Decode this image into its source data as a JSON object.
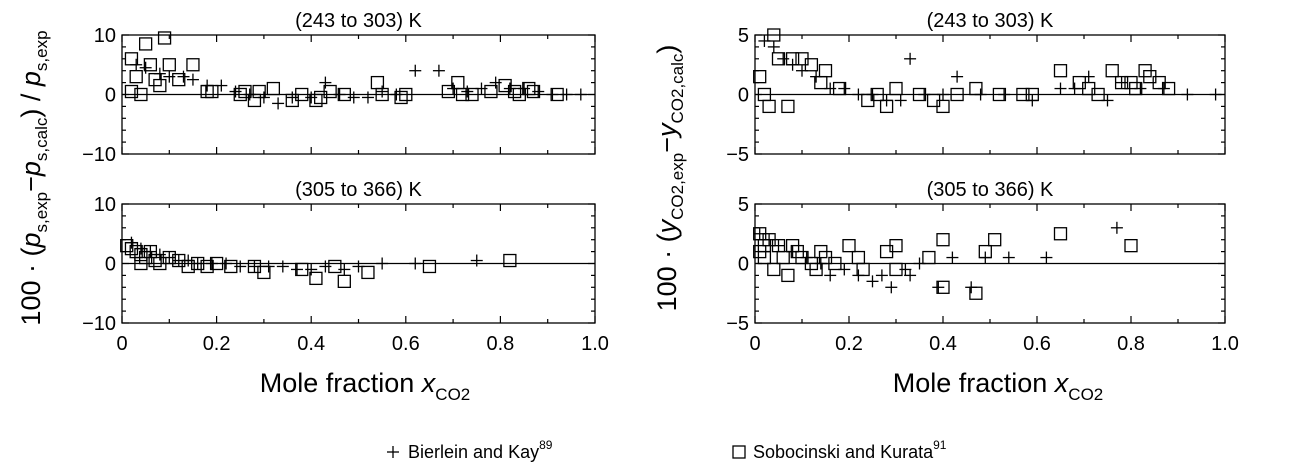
{
  "figure": {
    "legend": {
      "plus_label": "Bierlein and Kay",
      "plus_ref": "89",
      "square_label": "Sobocinski and Kurata",
      "square_ref": "91"
    },
    "left_ylabel": {
      "prefix": "100 · (",
      "p1": "p",
      "p1_sub": "s,exp",
      "minus": "−",
      "p2": "p",
      "p2_sub": "s,calc",
      "mid": ") / ",
      "p3": "p",
      "p3_sub": "s,exp"
    },
    "right_ylabel": {
      "prefix": "100 · (",
      "y1": "y",
      "y1_sub": "CO2,exp",
      "minus": "−",
      "y2": "y",
      "y2_sub": "CO2,calc",
      "suffix": ")"
    },
    "xlabel": {
      "text": "Mole fraction ",
      "var": "x",
      "sub": "CO2"
    }
  },
  "chart_data": [
    {
      "type": "scatter",
      "title": "(243 to 303) K",
      "xlim": [
        0,
        1.0
      ],
      "ylim": [
        -10,
        10
      ],
      "xticks": [
        0,
        0.2,
        0.4,
        0.6,
        0.8,
        1.0
      ],
      "xtick_labels": [
        "0",
        "0.2",
        "0.4",
        "0.6",
        "0.8",
        "1.0"
      ],
      "yticks": [
        -10,
        0,
        10
      ],
      "ytick_labels": [
        "−10",
        "0",
        "10"
      ],
      "show_x_labels": false,
      "series": [
        {
          "name": "Bierlein and Kay",
          "marker": "plus",
          "points": [
            [
              0.03,
              5.0
            ],
            [
              0.05,
              4.5
            ],
            [
              0.08,
              3.5
            ],
            [
              0.1,
              3.0
            ],
            [
              0.13,
              3.0
            ],
            [
              0.15,
              2.5
            ],
            [
              0.18,
              1.5
            ],
            [
              0.21,
              1.5
            ],
            [
              0.24,
              0.5
            ],
            [
              0.27,
              0.0
            ],
            [
              0.3,
              -0.5
            ],
            [
              0.33,
              -1.5
            ],
            [
              0.36,
              -0.5
            ],
            [
              0.4,
              -0.5
            ],
            [
              0.43,
              2.0
            ],
            [
              0.46,
              0.0
            ],
            [
              0.49,
              -0.5
            ],
            [
              0.52,
              -0.5
            ],
            [
              0.55,
              0.5
            ],
            [
              0.58,
              0.0
            ],
            [
              0.62,
              4.0
            ],
            [
              0.67,
              4.0
            ],
            [
              0.7,
              1.0
            ],
            [
              0.73,
              0.5
            ],
            [
              0.76,
              1.0
            ],
            [
              0.79,
              2.0
            ],
            [
              0.82,
              1.0
            ],
            [
              0.85,
              1.0
            ],
            [
              0.88,
              0.5
            ],
            [
              0.91,
              0.0
            ],
            [
              0.94,
              0.0
            ],
            [
              0.97,
              0.0
            ]
          ]
        },
        {
          "name": "Sobocinski and Kurata",
          "marker": "square",
          "points": [
            [
              0.02,
              6.0
            ],
            [
              0.02,
              0.5
            ],
            [
              0.03,
              3.0
            ],
            [
              0.04,
              0.0
            ],
            [
              0.05,
              8.5
            ],
            [
              0.06,
              5.0
            ],
            [
              0.07,
              2.5
            ],
            [
              0.08,
              1.5
            ],
            [
              0.09,
              9.5
            ],
            [
              0.1,
              5.0
            ],
            [
              0.12,
              2.5
            ],
            [
              0.15,
              5.0
            ],
            [
              0.18,
              0.5
            ],
            [
              0.19,
              0.5
            ],
            [
              0.25,
              0.0
            ],
            [
              0.26,
              0.5
            ],
            [
              0.28,
              -1.0
            ],
            [
              0.29,
              0.5
            ],
            [
              0.32,
              1.0
            ],
            [
              0.36,
              -1.0
            ],
            [
              0.38,
              0.0
            ],
            [
              0.41,
              -1.0
            ],
            [
              0.42,
              -0.5
            ],
            [
              0.44,
              0.5
            ],
            [
              0.47,
              0.0
            ],
            [
              0.54,
              2.0
            ],
            [
              0.55,
              0.0
            ],
            [
              0.59,
              -0.5
            ],
            [
              0.6,
              0.0
            ],
            [
              0.69,
              0.5
            ],
            [
              0.71,
              2.0
            ],
            [
              0.72,
              0.0
            ],
            [
              0.74,
              0.0
            ],
            [
              0.78,
              0.5
            ],
            [
              0.81,
              1.5
            ],
            [
              0.83,
              0.5
            ],
            [
              0.84,
              0.0
            ],
            [
              0.86,
              1.0
            ],
            [
              0.87,
              0.5
            ],
            [
              0.92,
              0.0
            ]
          ]
        }
      ]
    },
    {
      "type": "scatter",
      "title": "(305 to 366) K",
      "xlim": [
        0,
        1.0
      ],
      "ylim": [
        -10,
        10
      ],
      "xticks": [
        0,
        0.2,
        0.4,
        0.6,
        0.8,
        1.0
      ],
      "xtick_labels": [
        "0",
        "0.2",
        "0.4",
        "0.6",
        "0.8",
        "1.0"
      ],
      "yticks": [
        -10,
        0,
        10
      ],
      "ytick_labels": [
        "−10",
        "0",
        "10"
      ],
      "show_x_labels": true,
      "series": [
        {
          "name": "Bierlein and Kay",
          "marker": "plus",
          "points": [
            [
              0.02,
              3.5
            ],
            [
              0.04,
              2.5
            ],
            [
              0.06,
              2.0
            ],
            [
              0.08,
              1.5
            ],
            [
              0.1,
              1.0
            ],
            [
              0.12,
              0.5
            ],
            [
              0.14,
              0.5
            ],
            [
              0.16,
              0.0
            ],
            [
              0.19,
              0.0
            ],
            [
              0.22,
              0.0
            ],
            [
              0.25,
              -0.5
            ],
            [
              0.28,
              -0.5
            ],
            [
              0.31,
              -0.5
            ],
            [
              0.34,
              -0.5
            ],
            [
              0.37,
              -1.0
            ],
            [
              0.4,
              -1.0
            ],
            [
              0.43,
              -0.5
            ],
            [
              0.47,
              -1.0
            ],
            [
              0.5,
              -0.5
            ],
            [
              0.55,
              0.0
            ],
            [
              0.62,
              0.0
            ],
            [
              0.75,
              0.5
            ]
          ]
        },
        {
          "name": "Sobocinski and Kurata",
          "marker": "square",
          "points": [
            [
              0.01,
              3.0
            ],
            [
              0.02,
              2.5
            ],
            [
              0.03,
              2.0
            ],
            [
              0.04,
              1.5
            ],
            [
              0.04,
              0.0
            ],
            [
              0.05,
              1.0
            ],
            [
              0.06,
              2.0
            ],
            [
              0.07,
              0.5
            ],
            [
              0.08,
              0.0
            ],
            [
              0.1,
              1.0
            ],
            [
              0.12,
              0.5
            ],
            [
              0.14,
              -0.5
            ],
            [
              0.16,
              0.0
            ],
            [
              0.18,
              -0.5
            ],
            [
              0.2,
              0.0
            ],
            [
              0.23,
              -0.5
            ],
            [
              0.28,
              -0.5
            ],
            [
              0.3,
              -1.5
            ],
            [
              0.38,
              -1.0
            ],
            [
              0.41,
              -2.5
            ],
            [
              0.45,
              -0.5
            ],
            [
              0.47,
              -3.0
            ],
            [
              0.52,
              -1.5
            ],
            [
              0.65,
              -0.5
            ],
            [
              0.82,
              0.5
            ]
          ]
        }
      ]
    },
    {
      "type": "scatter",
      "title": "(243 to 303) K",
      "xlim": [
        0,
        1.0
      ],
      "ylim": [
        -5,
        5
      ],
      "xticks": [
        0,
        0.2,
        0.4,
        0.6,
        0.8,
        1.0
      ],
      "xtick_labels": [
        "0",
        "0.2",
        "0.4",
        "0.6",
        "0.8",
        "1.0"
      ],
      "yticks": [
        -5,
        0,
        5
      ],
      "ytick_labels": [
        "−5",
        "0",
        "5"
      ],
      "show_x_labels": false,
      "series": [
        {
          "name": "Bierlein and Kay",
          "marker": "plus",
          "points": [
            [
              0.02,
              4.5
            ],
            [
              0.04,
              4.0
            ],
            [
              0.06,
              3.0
            ],
            [
              0.08,
              2.5
            ],
            [
              0.1,
              2.0
            ],
            [
              0.13,
              1.5
            ],
            [
              0.16,
              0.5
            ],
            [
              0.19,
              0.5
            ],
            [
              0.22,
              0.0
            ],
            [
              0.25,
              0.0
            ],
            [
              0.28,
              -0.5
            ],
            [
              0.31,
              -0.5
            ],
            [
              0.33,
              3.0
            ],
            [
              0.36,
              0.0
            ],
            [
              0.4,
              0.0
            ],
            [
              0.43,
              1.5
            ],
            [
              0.48,
              0.0
            ],
            [
              0.53,
              0.0
            ],
            [
              0.59,
              -0.5
            ],
            [
              0.65,
              0.5
            ],
            [
              0.68,
              0.5
            ],
            [
              0.71,
              1.5
            ],
            [
              0.75,
              -0.5
            ],
            [
              0.78,
              1.0
            ],
            [
              0.82,
              0.5
            ],
            [
              0.87,
              0.5
            ],
            [
              0.92,
              0.0
            ],
            [
              0.98,
              0.0
            ]
          ]
        },
        {
          "name": "Sobocinski and Kurata",
          "marker": "square",
          "points": [
            [
              0.01,
              1.5
            ],
            [
              0.02,
              0.0
            ],
            [
              0.03,
              -1.0
            ],
            [
              0.04,
              5.0
            ],
            [
              0.05,
              3.0
            ],
            [
              0.07,
              -1.0
            ],
            [
              0.08,
              3.0
            ],
            [
              0.1,
              3.0
            ],
            [
              0.12,
              2.5
            ],
            [
              0.14,
              1.0
            ],
            [
              0.15,
              2.0
            ],
            [
              0.18,
              0.5
            ],
            [
              0.24,
              -0.5
            ],
            [
              0.26,
              0.0
            ],
            [
              0.28,
              -1.0
            ],
            [
              0.3,
              0.5
            ],
            [
              0.35,
              0.0
            ],
            [
              0.38,
              -0.5
            ],
            [
              0.4,
              -1.0
            ],
            [
              0.43,
              0.0
            ],
            [
              0.47,
              0.5
            ],
            [
              0.52,
              0.0
            ],
            [
              0.57,
              0.0
            ],
            [
              0.59,
              0.0
            ],
            [
              0.65,
              2.0
            ],
            [
              0.69,
              1.0
            ],
            [
              0.71,
              0.5
            ],
            [
              0.73,
              0.0
            ],
            [
              0.76,
              2.0
            ],
            [
              0.78,
              1.0
            ],
            [
              0.8,
              1.0
            ],
            [
              0.81,
              0.5
            ],
            [
              0.83,
              2.0
            ],
            [
              0.84,
              1.5
            ],
            [
              0.86,
              1.0
            ],
            [
              0.88,
              0.5
            ]
          ]
        }
      ]
    },
    {
      "type": "scatter",
      "title": "(305 to 366) K",
      "xlim": [
        0,
        1.0
      ],
      "ylim": [
        -5,
        5
      ],
      "xticks": [
        0,
        0.2,
        0.4,
        0.6,
        0.8,
        1.0
      ],
      "xtick_labels": [
        "0",
        "0.2",
        "0.4",
        "0.6",
        "0.8",
        "1.0"
      ],
      "yticks": [
        -5,
        0,
        5
      ],
      "ytick_labels": [
        "−5",
        "0",
        "5"
      ],
      "show_x_labels": true,
      "series": [
        {
          "name": "Bierlein and Kay",
          "marker": "plus",
          "points": [
            [
              0.01,
              2.5
            ],
            [
              0.03,
              2.0
            ],
            [
              0.05,
              1.5
            ],
            [
              0.08,
              1.0
            ],
            [
              0.11,
              0.5
            ],
            [
              0.14,
              0.0
            ],
            [
              0.16,
              -1.0
            ],
            [
              0.19,
              -0.5
            ],
            [
              0.22,
              -1.0
            ],
            [
              0.25,
              -1.5
            ],
            [
              0.27,
              -1.0
            ],
            [
              0.29,
              -2.0
            ],
            [
              0.32,
              -0.5
            ],
            [
              0.33,
              -1.0
            ],
            [
              0.35,
              0.0
            ],
            [
              0.39,
              -2.0
            ],
            [
              0.42,
              0.5
            ],
            [
              0.46,
              -2.0
            ],
            [
              0.49,
              0.5
            ],
            [
              0.54,
              0.5
            ],
            [
              0.62,
              0.5
            ],
            [
              0.77,
              3.0
            ]
          ]
        },
        {
          "name": "Sobocinski and Kurata",
          "marker": "square",
          "points": [
            [
              0.01,
              2.5
            ],
            [
              0.01,
              1.0
            ],
            [
              0.02,
              1.5
            ],
            [
              0.02,
              0.5
            ],
            [
              0.03,
              2.0
            ],
            [
              0.04,
              -0.5
            ],
            [
              0.05,
              1.5
            ],
            [
              0.06,
              0.5
            ],
            [
              0.07,
              -1.0
            ],
            [
              0.08,
              1.5
            ],
            [
              0.09,
              1.0
            ],
            [
              0.1,
              0.5
            ],
            [
              0.12,
              0.0
            ],
            [
              0.13,
              -0.5
            ],
            [
              0.14,
              1.0
            ],
            [
              0.15,
              0.5
            ],
            [
              0.17,
              0.0
            ],
            [
              0.2,
              1.5
            ],
            [
              0.22,
              0.5
            ],
            [
              0.23,
              -0.5
            ],
            [
              0.28,
              1.0
            ],
            [
              0.3,
              1.5
            ],
            [
              0.3,
              -0.5
            ],
            [
              0.37,
              0.5
            ],
            [
              0.4,
              2.0
            ],
            [
              0.4,
              -2.0
            ],
            [
              0.47,
              -2.5
            ],
            [
              0.49,
              1.0
            ],
            [
              0.51,
              2.0
            ],
            [
              0.65,
              2.5
            ],
            [
              0.8,
              1.5
            ]
          ]
        }
      ]
    }
  ]
}
